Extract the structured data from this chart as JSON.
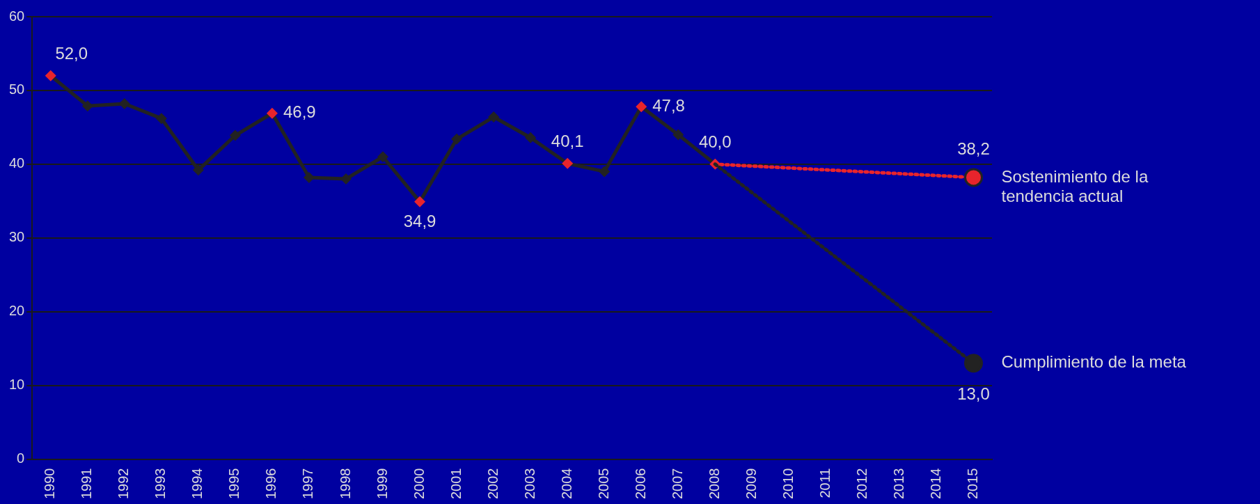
{
  "chart_data": {
    "type": "line",
    "categories": [
      "1990",
      "1991",
      "1992",
      "1993",
      "1994",
      "1995",
      "1996",
      "1997",
      "1998",
      "1999",
      "2000",
      "2001",
      "2002",
      "2003",
      "2004",
      "2005",
      "2006",
      "2007",
      "2008",
      "2009",
      "2010",
      "2011",
      "2012",
      "2013",
      "2014",
      "2015"
    ],
    "series": [
      {
        "color": "#222222",
        "marker": "diamond",
        "line_style": "solid",
        "colors": [
          "#e8242c",
          "#222222",
          "#222222",
          "#222222",
          "#222222",
          "#222222",
          "#e8242c",
          "#222222",
          "#222222",
          "#222222",
          "#e8242c",
          "#222222",
          "#222222",
          "#222222",
          "#e8242c",
          "#222222",
          "#e8242c",
          "#222222",
          "#e8242c",
          null,
          null,
          null,
          null,
          null,
          null,
          null
        ],
        "values": [
          52.0,
          47.9,
          48.2,
          46.2,
          39.2,
          43.9,
          46.9,
          38.2,
          38.0,
          41.0,
          34.9,
          43.4,
          46.4,
          43.6,
          40.1,
          39.0,
          47.8,
          44.0,
          40.0,
          null,
          null,
          null,
          null,
          null,
          null,
          null
        ],
        "value_labels": [
          "52,0",
          null,
          null,
          null,
          null,
          null,
          "46,9",
          null,
          null,
          null,
          "34,9",
          null,
          null,
          null,
          "40,1",
          null,
          "47,8",
          null,
          "40,0",
          null,
          null,
          null,
          null,
          null,
          null,
          null
        ]
      },
      {
        "name": "Sostenimiento de la tendencia actual",
        "color": "#e8242c",
        "marker": "circle",
        "line_style": "dotted",
        "values": [
          null,
          null,
          null,
          null,
          null,
          null,
          null,
          null,
          null,
          null,
          null,
          null,
          null,
          null,
          null,
          null,
          null,
          null,
          40.0,
          null,
          null,
          null,
          null,
          null,
          null,
          38.2
        ],
        "value_labels": [
          null,
          null,
          null,
          null,
          null,
          null,
          null,
          null,
          null,
          null,
          null,
          null,
          null,
          null,
          null,
          null,
          null,
          null,
          null,
          null,
          null,
          null,
          null,
          null,
          null,
          "38,2"
        ]
      },
      {
        "name": "Cumplimiento de la meta",
        "color": "#222222",
        "marker": "circle",
        "line_style": "dotted",
        "values": [
          null,
          null,
          null,
          null,
          null,
          null,
          null,
          null,
          null,
          null,
          null,
          null,
          null,
          null,
          null,
          null,
          null,
          null,
          40.0,
          null,
          null,
          null,
          null,
          null,
          null,
          13.0
        ],
        "value_labels": [
          null,
          null,
          null,
          null,
          null,
          null,
          null,
          null,
          null,
          null,
          null,
          null,
          null,
          null,
          null,
          null,
          null,
          null,
          null,
          null,
          null,
          null,
          null,
          null,
          null,
          "13,0"
        ]
      }
    ],
    "ylim": [
      0,
      60
    ],
    "yticks": [
      0,
      10,
      20,
      30,
      40,
      50,
      60
    ],
    "grid": "y",
    "legend": false
  }
}
